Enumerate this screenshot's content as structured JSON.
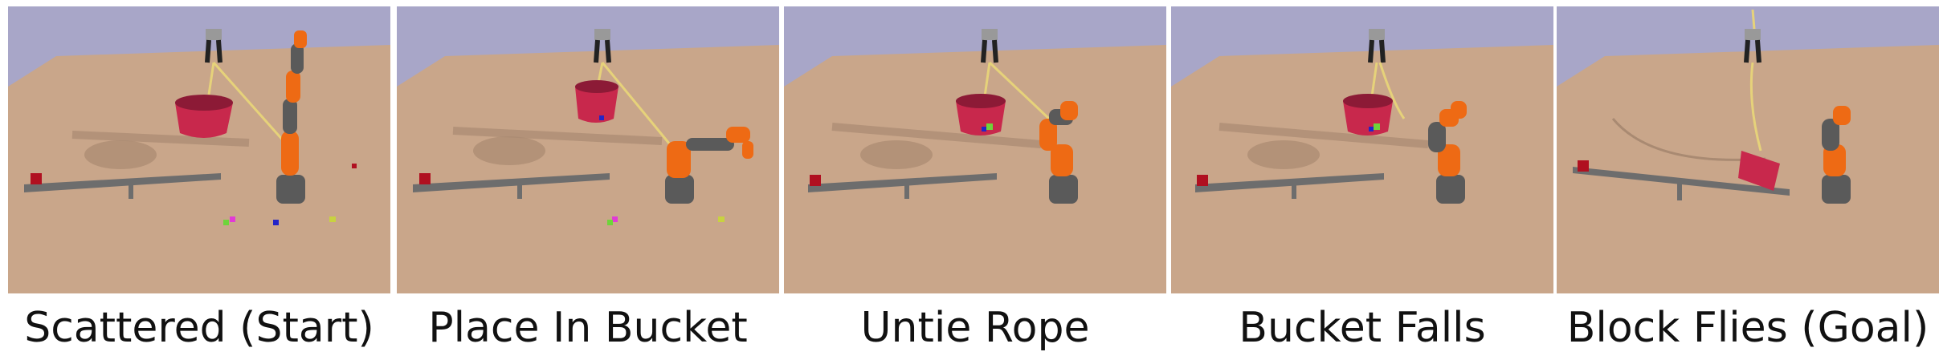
{
  "figure": {
    "panels": [
      {
        "caption": "Scattered (Start)"
      },
      {
        "caption": "Place In Bucket"
      },
      {
        "caption": "Untie Rope"
      },
      {
        "caption": "Bucket Falls"
      },
      {
        "caption": "Block Flies (Goal)"
      }
    ]
  },
  "colors": {
    "sky": "#a8a6c8",
    "floor": "#c9a68a",
    "floor_shadow": "#b39278",
    "bucket": "#c8284c",
    "arm_orange": "#ee6a14",
    "arm_gray": "#5a5a5a",
    "seesaw": "#6d6d6d",
    "rope": "#e6d27a"
  }
}
